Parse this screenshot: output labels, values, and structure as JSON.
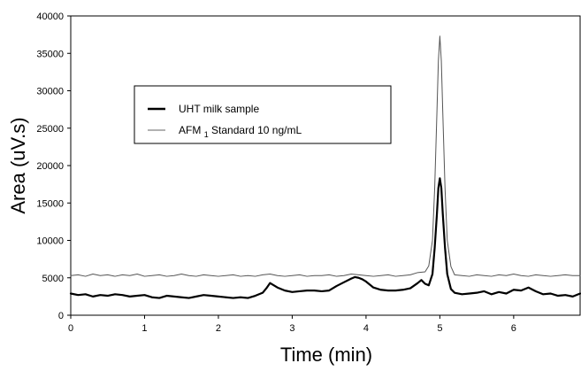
{
  "chart_data": {
    "type": "line",
    "title": "",
    "xlabel": "Time (min)",
    "ylabel": "Area (uV.s)",
    "xlim": [
      0,
      6.9
    ],
    "ylim": [
      0,
      40000
    ],
    "x_ticks": [
      0,
      1,
      2,
      3,
      4,
      5,
      6
    ],
    "y_ticks": [
      0,
      5000,
      10000,
      15000,
      20000,
      25000,
      30000,
      35000,
      40000
    ],
    "grid": false,
    "legend_position": "upper-left, inside plot area",
    "legend": [
      {
        "label": "UHT milk sample",
        "label_main": "UHT milk sample",
        "style": "thick"
      },
      {
        "label": "AFM1 Standard 10 ng/mL",
        "label_main": "AFM",
        "label_subscript": "1",
        "label_rest": " Standard 10 ng/mL",
        "style": "thin"
      }
    ],
    "series": [
      {
        "name": "UHT milk sample",
        "line_style": "thick",
        "color": "#000000",
        "x": [
          0.0,
          0.1,
          0.2,
          0.3,
          0.4,
          0.5,
          0.6,
          0.7,
          0.8,
          0.9,
          1.0,
          1.1,
          1.2,
          1.3,
          1.4,
          1.5,
          1.6,
          1.7,
          1.8,
          1.9,
          2.0,
          2.1,
          2.2,
          2.3,
          2.4,
          2.5,
          2.6,
          2.65,
          2.7,
          2.75,
          2.8,
          2.9,
          3.0,
          3.1,
          3.2,
          3.3,
          3.4,
          3.5,
          3.6,
          3.7,
          3.8,
          3.85,
          3.9,
          3.95,
          4.0,
          4.1,
          4.2,
          4.3,
          4.4,
          4.5,
          4.6,
          4.7,
          4.75,
          4.8,
          4.85,
          4.9,
          4.93,
          4.96,
          4.98,
          5.0,
          5.02,
          5.04,
          5.07,
          5.1,
          5.15,
          5.2,
          5.3,
          5.4,
          5.5,
          5.6,
          5.7,
          5.8,
          5.9,
          6.0,
          6.1,
          6.2,
          6.3,
          6.4,
          6.5,
          6.6,
          6.7,
          6.8,
          6.9
        ],
        "y": [
          2900,
          2700,
          2800,
          2500,
          2700,
          2600,
          2800,
          2700,
          2500,
          2600,
          2700,
          2400,
          2300,
          2600,
          2500,
          2400,
          2300,
          2500,
          2700,
          2600,
          2500,
          2400,
          2300,
          2400,
          2300,
          2600,
          3000,
          3600,
          4300,
          4000,
          3700,
          3300,
          3100,
          3200,
          3300,
          3300,
          3200,
          3300,
          3900,
          4400,
          4900,
          5100,
          5000,
          4800,
          4500,
          3700,
          3400,
          3300,
          3300,
          3400,
          3600,
          4300,
          4700,
          4200,
          4000,
          5500,
          9000,
          13500,
          17000,
          18300,
          17000,
          13500,
          9000,
          5500,
          3500,
          3000,
          2800,
          2900,
          3000,
          3200,
          2800,
          3100,
          2900,
          3400,
          3300,
          3700,
          3200,
          2800,
          2900,
          2600,
          2700,
          2500,
          2900
        ]
      },
      {
        "name": "AFM1 Standard 10 ng/mL",
        "line_style": "thin",
        "color": "#555555",
        "x": [
          0.0,
          0.1,
          0.2,
          0.3,
          0.4,
          0.5,
          0.6,
          0.7,
          0.8,
          0.9,
          1.0,
          1.1,
          1.2,
          1.3,
          1.4,
          1.5,
          1.6,
          1.7,
          1.8,
          1.9,
          2.0,
          2.1,
          2.2,
          2.3,
          2.4,
          2.5,
          2.6,
          2.7,
          2.8,
          2.9,
          3.0,
          3.1,
          3.2,
          3.3,
          3.4,
          3.5,
          3.6,
          3.7,
          3.8,
          3.9,
          4.0,
          4.1,
          4.2,
          4.3,
          4.4,
          4.5,
          4.6,
          4.7,
          4.8,
          4.85,
          4.9,
          4.93,
          4.96,
          4.98,
          5.0,
          5.02,
          5.04,
          5.07,
          5.1,
          5.15,
          5.2,
          5.3,
          5.4,
          5.5,
          5.6,
          5.7,
          5.8,
          5.9,
          6.0,
          6.1,
          6.2,
          6.3,
          6.4,
          6.5,
          6.6,
          6.7,
          6.8,
          6.9
        ],
        "y": [
          5300,
          5400,
          5200,
          5500,
          5300,
          5400,
          5200,
          5400,
          5300,
          5500,
          5200,
          5300,
          5400,
          5200,
          5300,
          5500,
          5300,
          5200,
          5400,
          5300,
          5200,
          5300,
          5400,
          5200,
          5300,
          5200,
          5400,
          5500,
          5300,
          5200,
          5300,
          5400,
          5200,
          5300,
          5300,
          5400,
          5200,
          5300,
          5500,
          5400,
          5300,
          5200,
          5300,
          5400,
          5200,
          5300,
          5400,
          5700,
          5800,
          6600,
          10000,
          17000,
          27000,
          34000,
          37300,
          34000,
          27000,
          17000,
          10000,
          6500,
          5400,
          5300,
          5200,
          5400,
          5300,
          5200,
          5400,
          5300,
          5500,
          5300,
          5200,
          5400,
          5300,
          5200,
          5300,
          5400,
          5300,
          5300
        ]
      }
    ]
  }
}
